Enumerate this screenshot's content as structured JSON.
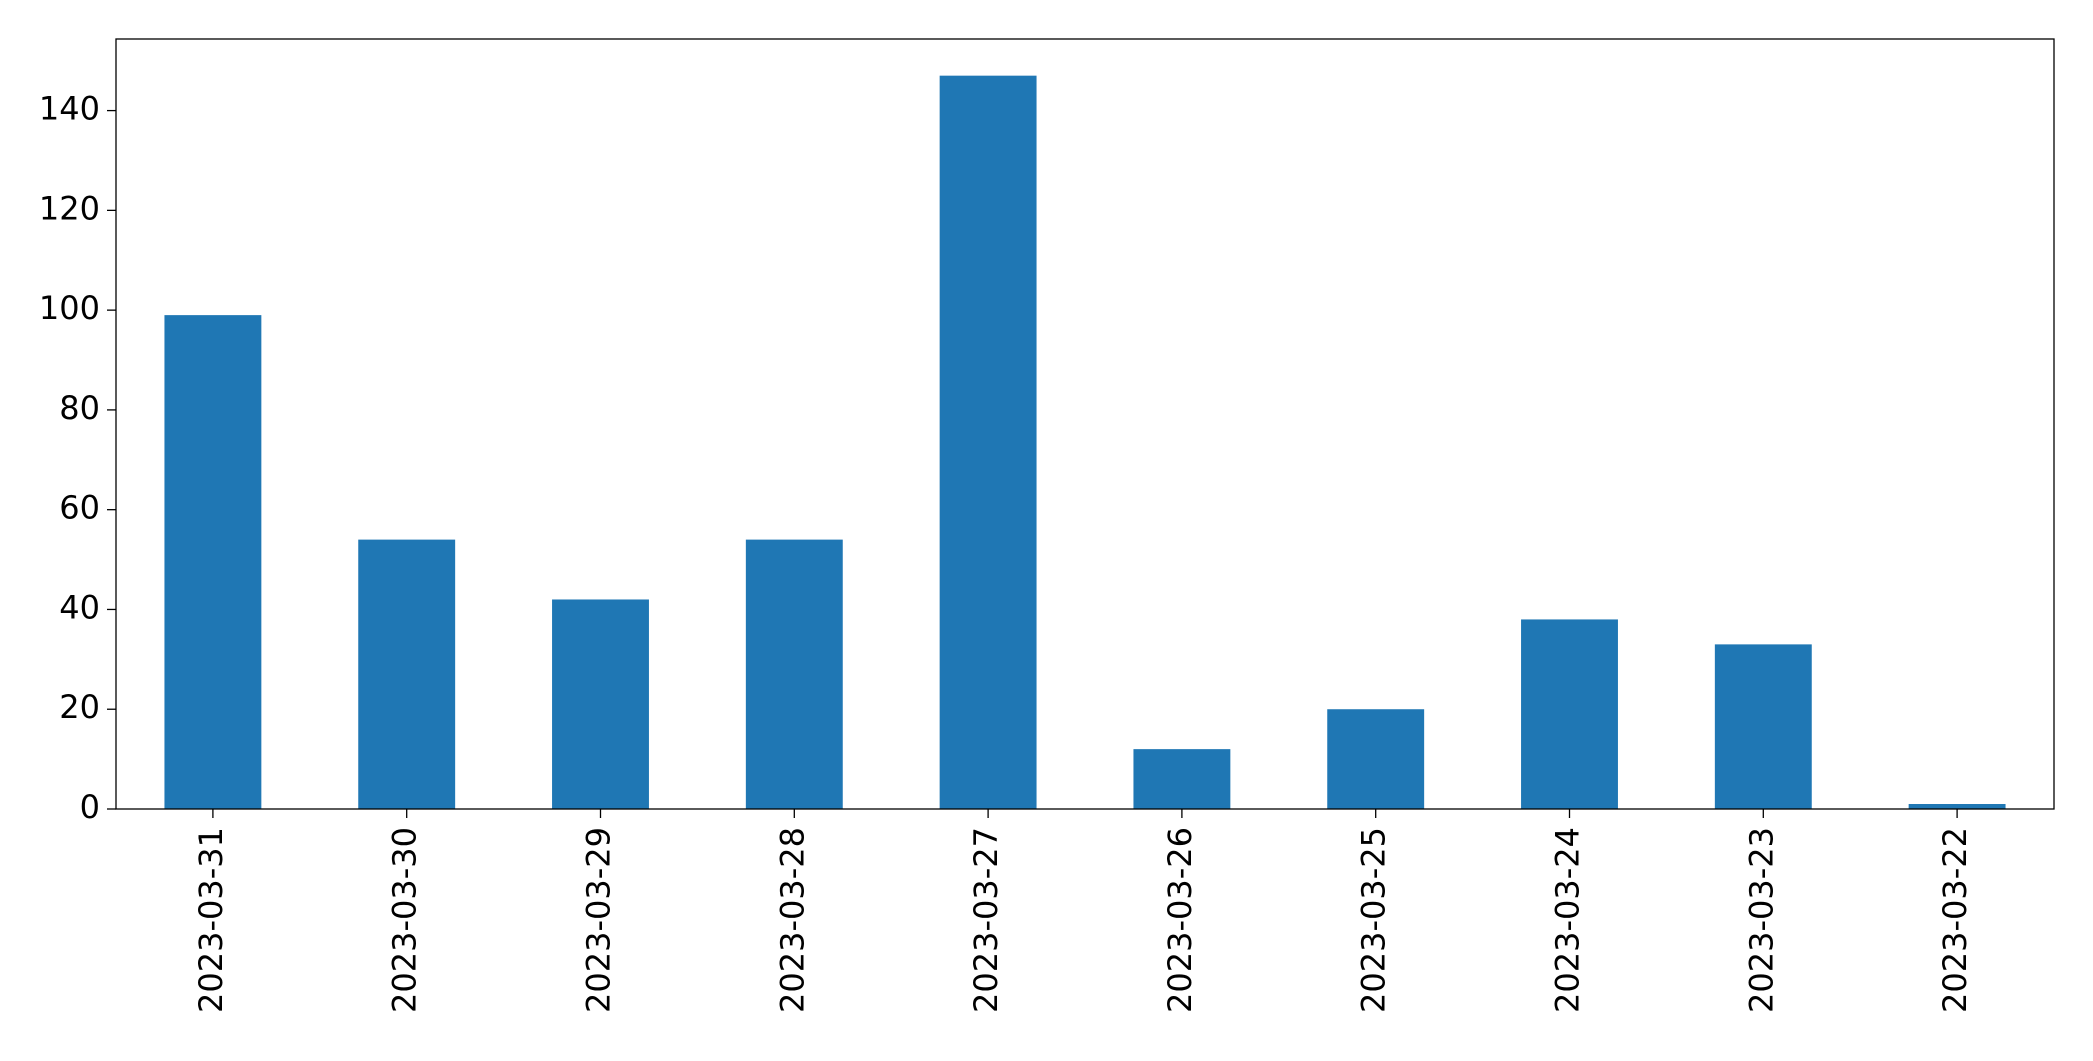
{
  "chart_data": {
    "type": "bar",
    "categories": [
      "2023-03-31",
      "2023-03-30",
      "2023-03-29",
      "2023-03-28",
      "2023-03-27",
      "2023-03-26",
      "2023-03-25",
      "2023-03-24",
      "2023-03-23",
      "2023-03-22"
    ],
    "values": [
      99,
      54,
      42,
      54,
      147,
      12,
      20,
      38,
      33,
      1
    ],
    "color": "#1f77b4",
    "ylim": [
      0,
      154.35
    ],
    "yticks": [
      0,
      20,
      40,
      60,
      80,
      100,
      120,
      140
    ],
    "grid": false
  }
}
